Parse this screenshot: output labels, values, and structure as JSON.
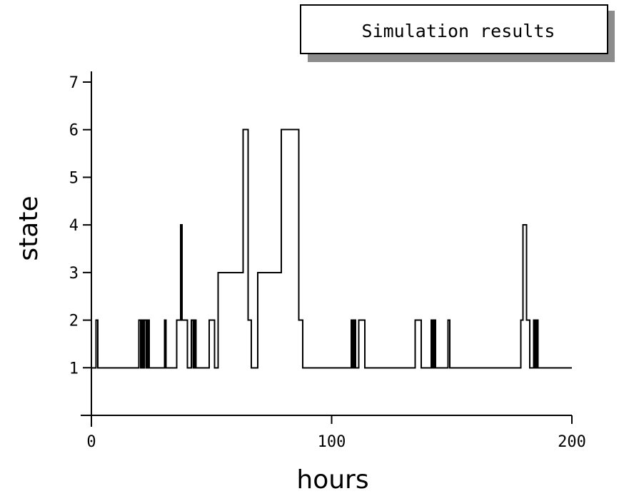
{
  "chart_data": {
    "type": "line",
    "title": "Simulation results",
    "xlabel": "hours",
    "ylabel": "state",
    "xlim": [
      0,
      200
    ],
    "ylim": [
      0,
      7
    ],
    "x_ticks": [
      0,
      100,
      200
    ],
    "x_tick_labels": [
      "0",
      "100",
      "200"
    ],
    "y_ticks": [
      1,
      2,
      3,
      4,
      5,
      6,
      7
    ],
    "y_tick_labels": [
      "1",
      "2",
      "3",
      "4",
      "5",
      "6",
      "7"
    ],
    "grid": false,
    "legend": "none",
    "line_color": "#000000",
    "series": [
      {
        "step": "post",
        "x": [
          0,
          2.0,
          2.7,
          19.7,
          20.5,
          21.0,
          21.6,
          22.2,
          22.9,
          23.5,
          24.0,
          30.5,
          31.1,
          35.5,
          37.2,
          37.8,
          40.0,
          41.6,
          42.3,
          42.9,
          43.5,
          49.1,
          51.2,
          52.8,
          63.2,
          65.3,
          66.5,
          69.2,
          79.1,
          79.8,
          86.4,
          87.9,
          108.1,
          108.7,
          109.4,
          110.0,
          111.3,
          113.8,
          114.4,
          123.2,
          134.8,
          137.3,
          141.5,
          142.1,
          142.7,
          143.3,
          148.4,
          149.2,
          153.4,
          178.8,
          179.6,
          181.1,
          182.4,
          184.1,
          184.7,
          185.3,
          185.9,
          200
        ],
        "y": [
          1,
          2,
          1,
          2,
          1,
          2,
          1,
          2,
          1,
          2,
          1,
          2,
          1,
          2,
          4,
          2,
          1,
          2,
          1,
          2,
          1,
          2,
          1,
          3,
          6,
          2,
          1,
          3,
          6,
          6,
          2,
          1,
          2,
          1,
          2,
          1,
          2,
          1,
          1,
          1,
          2,
          1,
          2,
          1,
          2,
          1,
          2,
          1,
          1,
          2,
          4,
          2,
          1,
          2,
          1,
          2,
          1,
          1
        ]
      }
    ]
  }
}
